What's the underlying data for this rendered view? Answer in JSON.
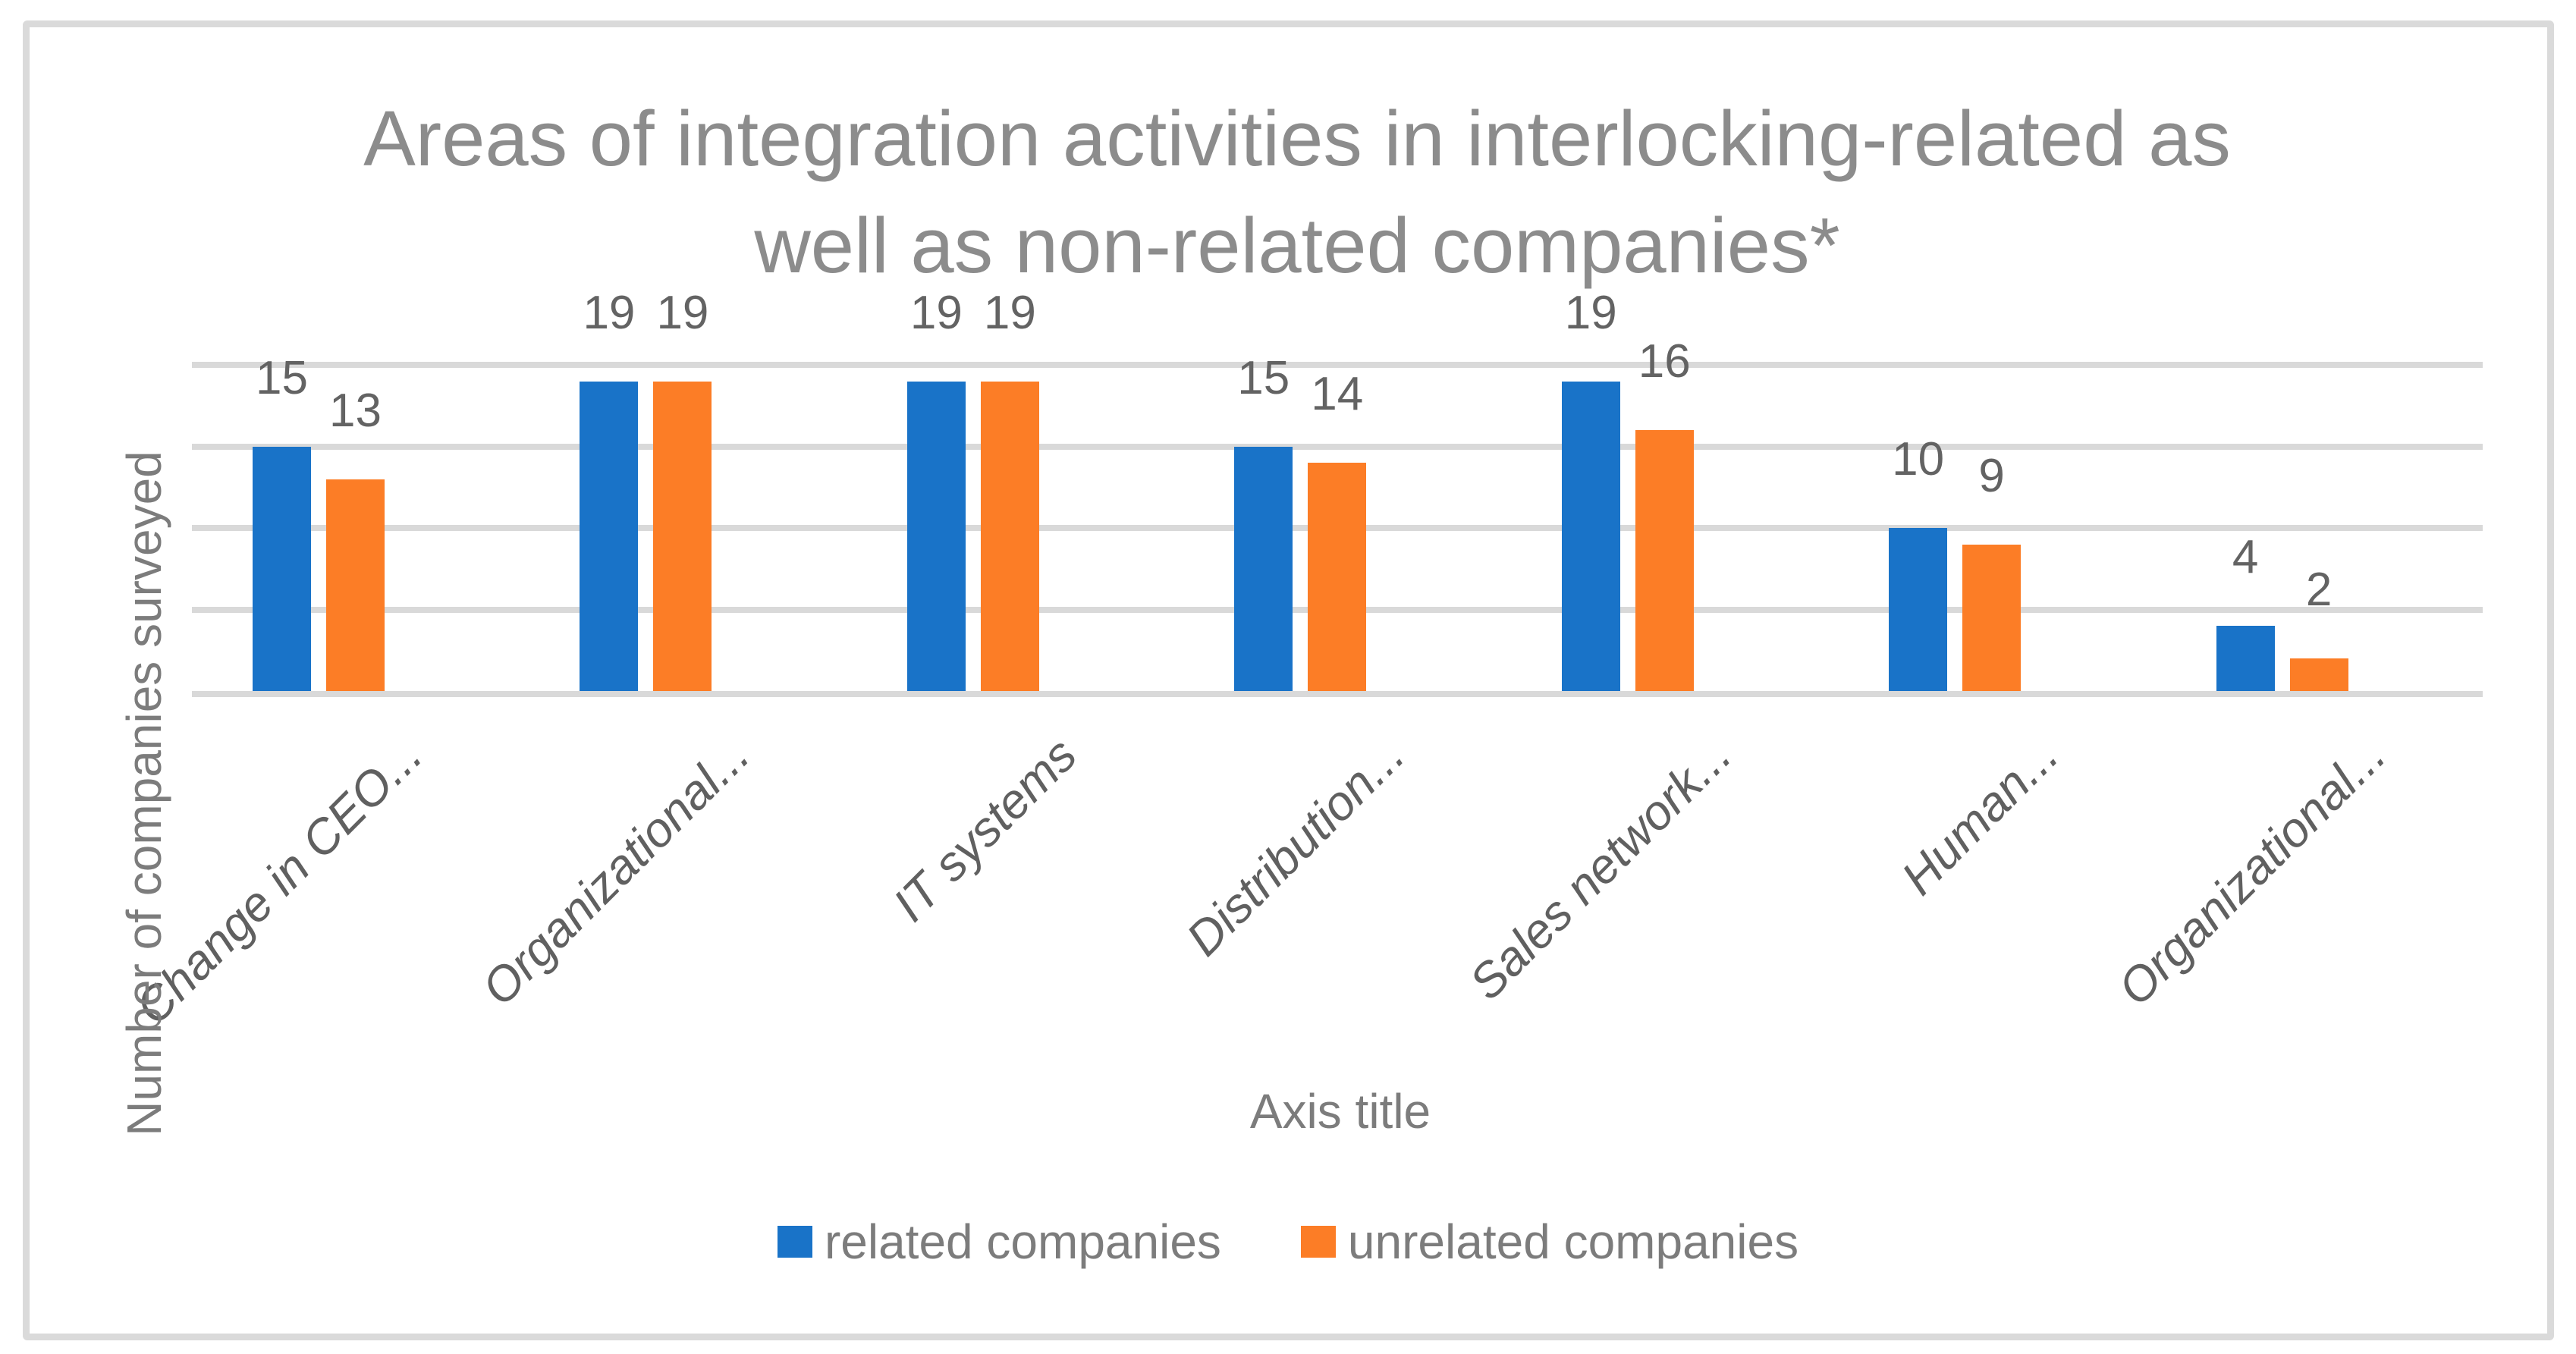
{
  "figure": {
    "background": "#FFFFFF",
    "border_color": "#DADADA"
  },
  "chart_data": {
    "type": "bar",
    "title": "Areas of integration activities in interlocking-related as well as non-related companies*",
    "title_lines": [
      "Areas of integration activities in interlocking-related as",
      "well as non-related companies*"
    ],
    "xlabel": "Axis title",
    "ylabel": "Number of companies surveyed",
    "categories": [
      "Change in CEO...",
      "Organizational...",
      "IT systems",
      "Distribution...",
      "Sales network...",
      "Human...",
      "Organizational..."
    ],
    "series": [
      {
        "name": "related companies",
        "color": "#1973C8",
        "values": [
          15,
          19,
          19,
          15,
          19,
          10,
          4
        ]
      },
      {
        "name": "unrelated companies",
        "color": "#FC7D26",
        "values": [
          13,
          19,
          19,
          14,
          16,
          9,
          2
        ]
      }
    ],
    "ylim": [
      0,
      20
    ],
    "gridline_values": [
      0,
      5,
      10,
      15,
      20
    ],
    "grid": true,
    "axis_tick_labels_visible": false,
    "data_labels": true,
    "legend_position": "bottom",
    "gridline_color": "#D9D9D9",
    "text_colors": {
      "title": "#8C8C8C",
      "data_label": "#636363",
      "category_label": "#606060",
      "axis_title": "#7C7C7C",
      "legend": "#7C7C7C"
    }
  }
}
